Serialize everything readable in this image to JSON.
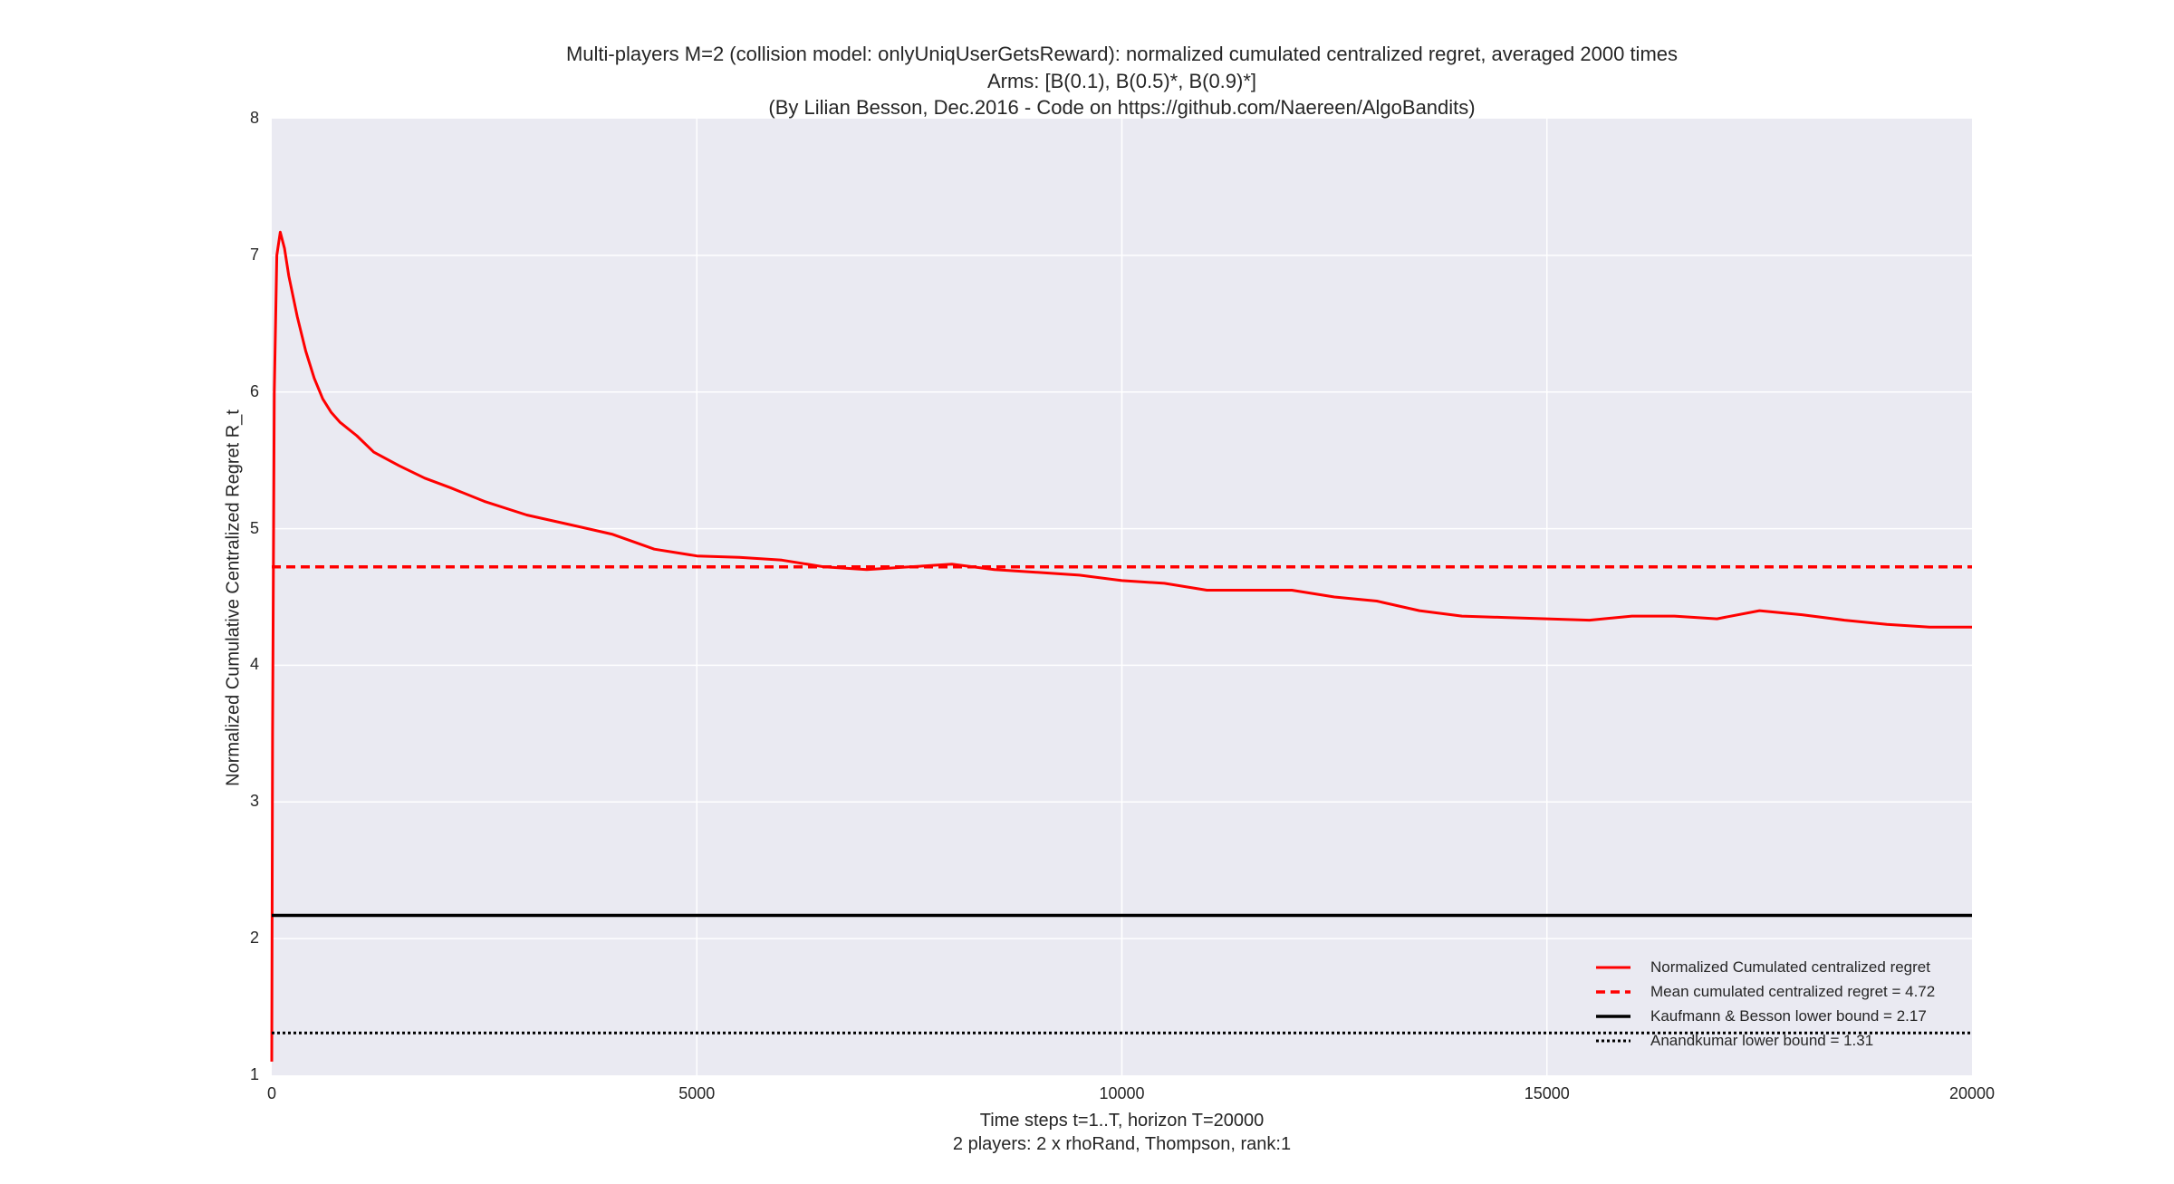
{
  "chart_data": {
    "type": "line",
    "title": [
      "Multi-players M=2 (collision model: onlyUniqUserGetsReward): normalized cumulated centralized regret, averaged 2000 times",
      "Arms: [B(0.1), B(0.5)*, B(0.9)*]",
      "(By Lilian Besson, Dec.2016 - Code on https://github.com/Naereen/AlgoBandits)"
    ],
    "xlabel": "Time steps t=1..T, horizon T=20000",
    "xlabel2": "2 players: 2 x rhoRand, Thompson, rank:1",
    "ylabel": "Normalized Cumulative Centralized Regret R_t",
    "xlim": [
      0,
      20000
    ],
    "ylim": [
      1,
      8
    ],
    "xticks": [
      "0",
      "5000",
      "10000",
      "15000",
      "20000"
    ],
    "yticks": [
      "1",
      "2",
      "3",
      "4",
      "5",
      "6",
      "7",
      "8"
    ],
    "grid": true,
    "legend_position": "bottom-right",
    "series": [
      {
        "name": "Normalized Cumulated centralized regret",
        "style": "solid",
        "color": "#ff0000",
        "x": [
          0,
          10,
          30,
          60,
          100,
          150,
          200,
          300,
          400,
          500,
          600,
          700,
          800,
          1000,
          1200,
          1500,
          1800,
          2100,
          2500,
          3000,
          3500,
          4000,
          4500,
          5000,
          5500,
          6000,
          6500,
          7000,
          7500,
          8000,
          8500,
          9000,
          9500,
          10000,
          10500,
          11000,
          11500,
          12000,
          12500,
          13000,
          13500,
          14000,
          14500,
          15000,
          15500,
          16000,
          16500,
          17000,
          17500,
          18000,
          18500,
          19000,
          19500,
          20000
        ],
        "values": [
          1.1,
          3.5,
          6.0,
          7.0,
          7.17,
          7.05,
          6.85,
          6.55,
          6.3,
          6.1,
          5.95,
          5.85,
          5.78,
          5.68,
          5.56,
          5.46,
          5.37,
          5.3,
          5.2,
          5.1,
          5.03,
          4.96,
          4.85,
          4.8,
          4.79,
          4.77,
          4.72,
          4.7,
          4.72,
          4.74,
          4.7,
          4.68,
          4.66,
          4.62,
          4.6,
          4.55,
          4.55,
          4.55,
          4.5,
          4.47,
          4.4,
          4.36,
          4.35,
          4.34,
          4.33,
          4.36,
          4.36,
          4.34,
          4.4,
          4.37,
          4.33,
          4.3,
          4.28,
          4.28
        ]
      },
      {
        "name": "Mean cumulated centralized regret = 4.72",
        "style": "dashed",
        "color": "#ff0000",
        "x": [
          0,
          20000
        ],
        "values": [
          4.72,
          4.72
        ]
      },
      {
        "name": "Kaufmann & Besson lower bound = 2.17",
        "style": "solid",
        "color": "#000000",
        "x": [
          0,
          20000
        ],
        "values": [
          2.17,
          2.17
        ]
      },
      {
        "name": "Anandkumar lower bound = 1.31",
        "style": "dotted",
        "color": "#000000",
        "x": [
          0,
          20000
        ],
        "values": [
          1.31,
          1.31
        ]
      }
    ]
  },
  "colors": {
    "plot_background": "#eaeaf2",
    "grid": "#ffffff"
  }
}
